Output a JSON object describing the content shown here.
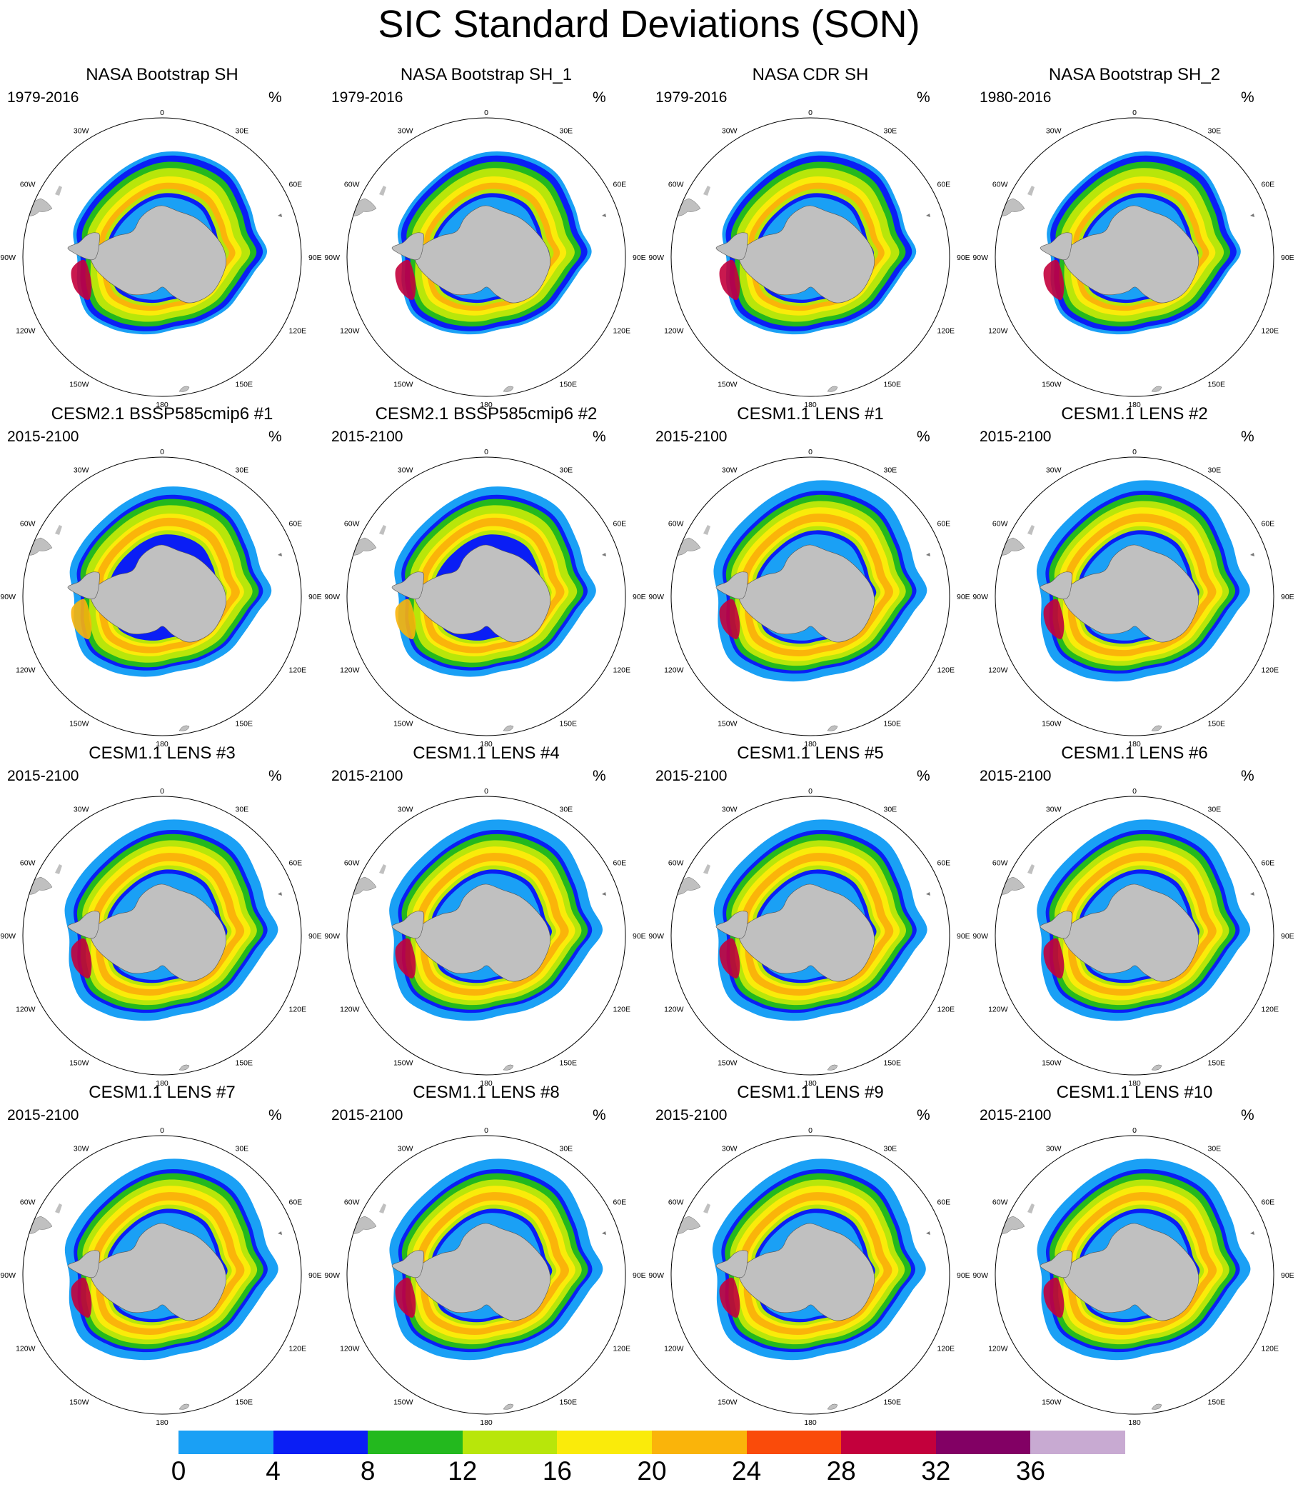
{
  "title": "SIC Standard Deviations (SON)",
  "colors": {
    "land": "#c0c0c0",
    "levels": [
      "#1aa0f5",
      "#0a1ef5",
      "#23b91e",
      "#b8e60a",
      "#faeb0a",
      "#fab40a",
      "#fa4b0a",
      "#c3003c",
      "#820064",
      "#c8aad2"
    ]
  },
  "map": {
    "longitude_labels": [
      "0",
      "30E",
      "60E",
      "90E",
      "120E",
      "150E",
      "180",
      "150W",
      "120W",
      "90W",
      "60W",
      "30W"
    ]
  },
  "panels": [
    {
      "title": "NASA Bootstrap SH",
      "period": "1979-2016",
      "units": "%",
      "style": "obs"
    },
    {
      "title": "NASA Bootstrap SH_1",
      "period": "1979-2016",
      "units": "%",
      "style": "obs"
    },
    {
      "title": "NASA CDR SH",
      "period": "1979-2016",
      "units": "%",
      "style": "obs"
    },
    {
      "title": "NASA Bootstrap SH_2",
      "period": "1980-2016",
      "units": "%",
      "style": "obs"
    },
    {
      "title": "CESM2.1 BSSP585cmip6 #1",
      "period": "2015-2100",
      "units": "%",
      "style": "cesm2"
    },
    {
      "title": "CESM2.1 BSSP585cmip6 #2",
      "period": "2015-2100",
      "units": "%",
      "style": "cesm2"
    },
    {
      "title": "CESM1.1 LENS #1",
      "period": "2015-2100",
      "units": "%",
      "style": "lens"
    },
    {
      "title": "CESM1.1 LENS #2",
      "period": "2015-2100",
      "units": "%",
      "style": "lens"
    },
    {
      "title": "CESM1.1 LENS #3",
      "period": "2015-2100",
      "units": "%",
      "style": "lens"
    },
    {
      "title": "CESM1.1 LENS #4",
      "period": "2015-2100",
      "units": "%",
      "style": "lens"
    },
    {
      "title": "CESM1.1 LENS #5",
      "period": "2015-2100",
      "units": "%",
      "style": "lens"
    },
    {
      "title": "CESM1.1 LENS #6",
      "period": "2015-2100",
      "units": "%",
      "style": "lens"
    },
    {
      "title": "CESM1.1 LENS #7",
      "period": "2015-2100",
      "units": "%",
      "style": "lens"
    },
    {
      "title": "CESM1.1 LENS #8",
      "period": "2015-2100",
      "units": "%",
      "style": "lens"
    },
    {
      "title": "CESM1.1 LENS #9",
      "period": "2015-2100",
      "units": "%",
      "style": "lens"
    },
    {
      "title": "CESM1.1 LENS #10",
      "period": "2015-2100",
      "units": "%",
      "style": "lens"
    }
  ],
  "colorbar": {
    "tick_labels": [
      "0",
      "4",
      "8",
      "12",
      "16",
      "20",
      "24",
      "28",
      "32",
      "36"
    ]
  }
}
